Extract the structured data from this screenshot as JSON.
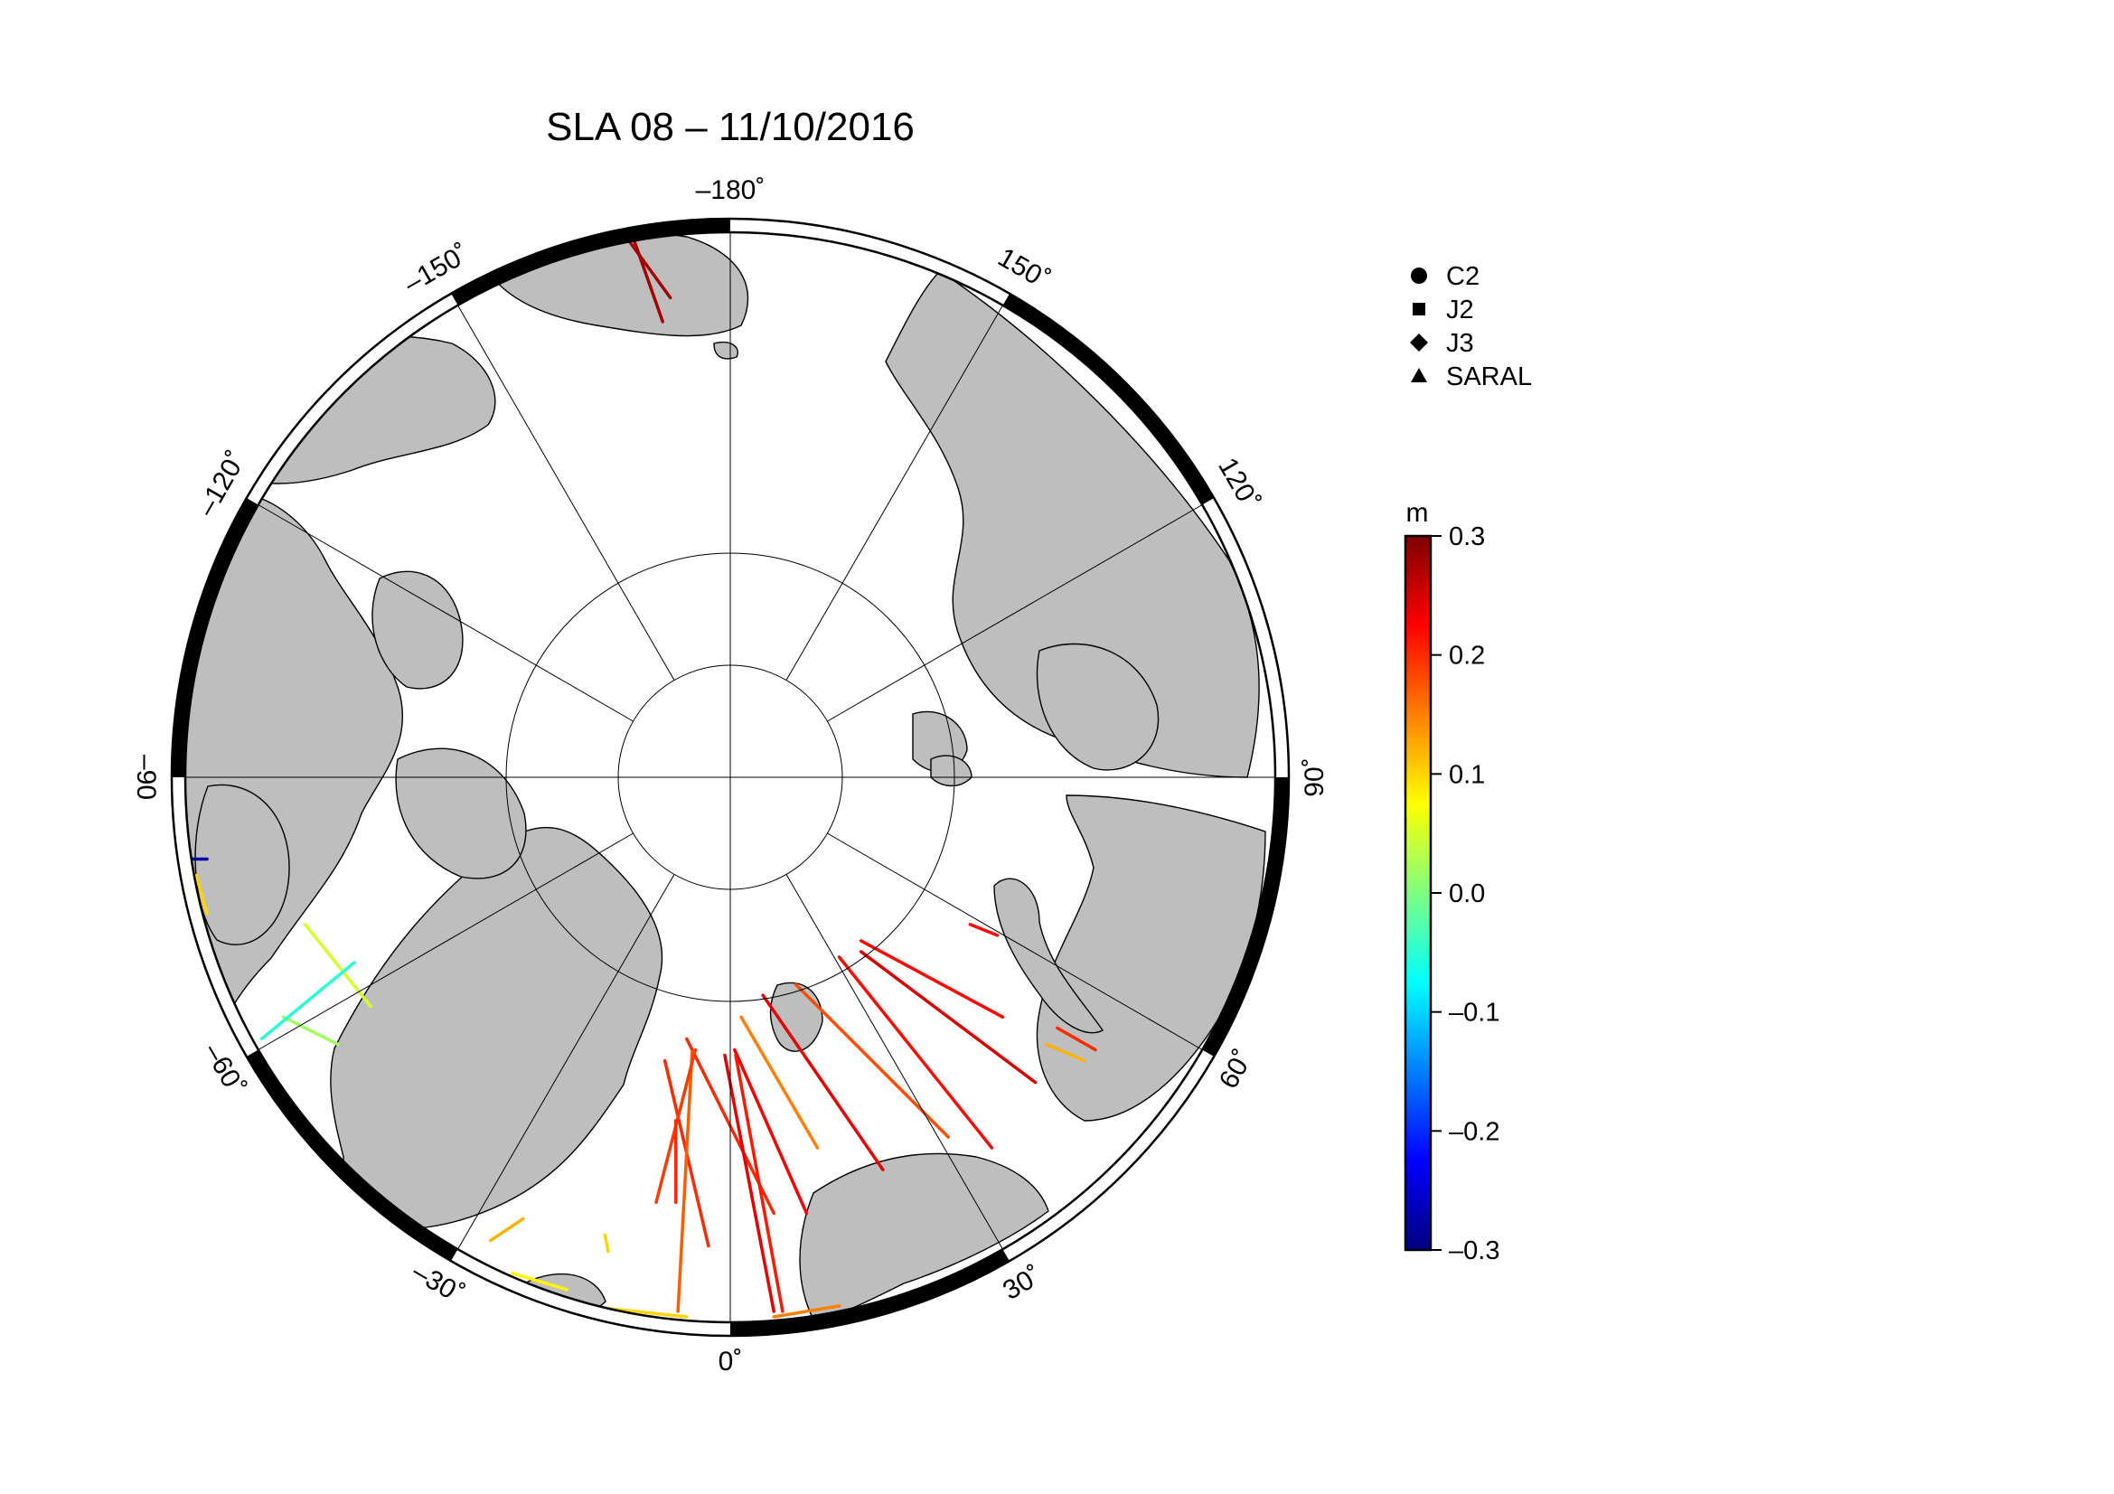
{
  "title": "SLA 08 – 11/10/2016",
  "map": {
    "projection": "north-polar-stereographic",
    "land_color": "#bebebe",
    "ocean_color": "#ffffff",
    "longitude_labels": [
      {
        "lon": 180,
        "text": "–180˚"
      },
      {
        "lon": 150,
        "text": "150˚"
      },
      {
        "lon": 120,
        "text": "120˚"
      },
      {
        "lon": 90,
        "text": "90˚"
      },
      {
        "lon": 60,
        "text": "60˚"
      },
      {
        "lon": 30,
        "text": "30˚"
      },
      {
        "lon": 0,
        "text": "0˚"
      },
      {
        "lon": -30,
        "text": "–30˚"
      },
      {
        "lon": -60,
        "text": "–60˚"
      },
      {
        "lon": -90,
        "text": "–90"
      },
      {
        "lon": -120,
        "text": "–120˚"
      },
      {
        "lon": -150,
        "text": "–150˚"
      }
    ]
  },
  "legend": {
    "items": [
      {
        "symbol": "circle",
        "label": "C2"
      },
      {
        "symbol": "square",
        "label": "J2"
      },
      {
        "symbol": "diamond",
        "label": "J3"
      },
      {
        "symbol": "triangle",
        "label": "SARAL"
      }
    ]
  },
  "colorbar": {
    "unit": "m",
    "min": -0.3,
    "max": 0.3,
    "tick_labels": [
      "0.3",
      "0.2",
      "0.1",
      "0.0",
      "–0.1",
      "–0.2",
      "–0.3"
    ],
    "tick_values": [
      0.3,
      0.2,
      0.1,
      0.0,
      -0.1,
      -0.2,
      -0.3
    ],
    "colors": [
      "#00007f",
      "#0000ff",
      "#007fff",
      "#00ffff",
      "#7fff7f",
      "#ffff00",
      "#ff7f00",
      "#ff0000",
      "#7f0000"
    ]
  },
  "tracks": [
    {
      "v": 0.28,
      "seg": [
        [
          0.405,
          0.005
        ],
        [
          0.445,
          0.06
        ]
      ]
    },
    {
      "v": 0.28,
      "seg": [
        [
          0.412,
          0.008
        ],
        [
          0.438,
          0.082
        ]
      ]
    },
    {
      "v": 0.25,
      "seg": [
        [
          0.62,
          0.66
        ],
        [
          0.78,
          0.78
        ]
      ]
    },
    {
      "v": 0.22,
      "seg": [
        [
          0.6,
          0.665
        ],
        [
          0.74,
          0.84
        ]
      ]
    },
    {
      "v": 0.18,
      "seg": [
        [
          0.56,
          0.69
        ],
        [
          0.7,
          0.83
        ]
      ]
    },
    {
      "v": 0.24,
      "seg": [
        [
          0.53,
          0.7
        ],
        [
          0.64,
          0.86
        ]
      ]
    },
    {
      "v": 0.15,
      "seg": [
        [
          0.51,
          0.72
        ],
        [
          0.58,
          0.84
        ]
      ]
    },
    {
      "v": 0.22,
      "seg": [
        [
          0.62,
          0.65
        ],
        [
          0.75,
          0.72
        ]
      ]
    },
    {
      "v": 0.2,
      "seg": [
        [
          0.46,
          0.74
        ],
        [
          0.54,
          0.9
        ]
      ]
    },
    {
      "v": 0.2,
      "seg": [
        [
          0.44,
          0.76
        ],
        [
          0.48,
          0.93
        ]
      ]
    },
    {
      "v": 0.23,
      "seg": [
        [
          0.504,
          0.75
        ],
        [
          0.57,
          0.9
        ]
      ]
    },
    {
      "v": 0.21,
      "seg": [
        [
          0.505,
          0.755
        ],
        [
          0.548,
          0.99
        ]
      ]
    },
    {
      "v": 0.24,
      "seg": [
        [
          0.495,
          0.755
        ],
        [
          0.54,
          0.99
        ]
      ]
    },
    {
      "v": 0.17,
      "seg": [
        [
          0.465,
          0.752
        ],
        [
          0.452,
          0.99
        ]
      ]
    },
    {
      "v": 0.19,
      "seg": [
        [
          0.468,
          0.75
        ],
        [
          0.432,
          0.89
        ]
      ]
    },
    {
      "v": 0.2,
      "seg": [
        [
          0.45,
          0.815
        ],
        [
          0.45,
          0.89
        ]
      ]
    },
    {
      "v": 0.1,
      "seg": [
        [
          0.385,
          0.92
        ],
        [
          0.388,
          0.935
        ]
      ]
    },
    {
      "v": 0.05,
      "seg": [
        [
          0.11,
          0.635
        ],
        [
          0.17,
          0.71
        ]
      ]
    },
    {
      "v": 0.02,
      "seg": [
        [
          0.09,
          0.72
        ],
        [
          0.14,
          0.745
        ]
      ]
    },
    {
      "v": -0.05,
      "seg": [
        [
          0.07,
          0.74
        ],
        [
          0.155,
          0.67
        ]
      ]
    },
    {
      "v": 0.1,
      "seg": [
        [
          0.01,
          0.59
        ],
        [
          0.02,
          0.625
        ]
      ]
    },
    {
      "v": -0.28,
      "seg": [
        [
          0.005,
          0.575
        ],
        [
          0.02,
          0.575
        ]
      ]
    },
    {
      "v": 0.12,
      "seg": [
        [
          0.28,
          0.925
        ],
        [
          0.31,
          0.905
        ]
      ]
    },
    {
      "v": 0.08,
      "seg": [
        [
          0.3,
          0.955
        ],
        [
          0.35,
          0.97
        ]
      ]
    },
    {
      "v": 0.1,
      "seg": [
        [
          0.365,
          0.985
        ],
        [
          0.46,
          0.995
        ]
      ]
    },
    {
      "v": 0.15,
      "seg": [
        [
          0.54,
          0.995
        ],
        [
          0.6,
          0.985
        ]
      ]
    },
    {
      "v": 0.2,
      "seg": [
        [
          0.8,
          0.73
        ],
        [
          0.835,
          0.75
        ]
      ]
    },
    {
      "v": 0.12,
      "seg": [
        [
          0.79,
          0.745
        ],
        [
          0.825,
          0.76
        ]
      ]
    },
    {
      "v": 0.22,
      "seg": [
        [
          0.72,
          0.635
        ],
        [
          0.745,
          0.645
        ]
      ]
    }
  ]
}
